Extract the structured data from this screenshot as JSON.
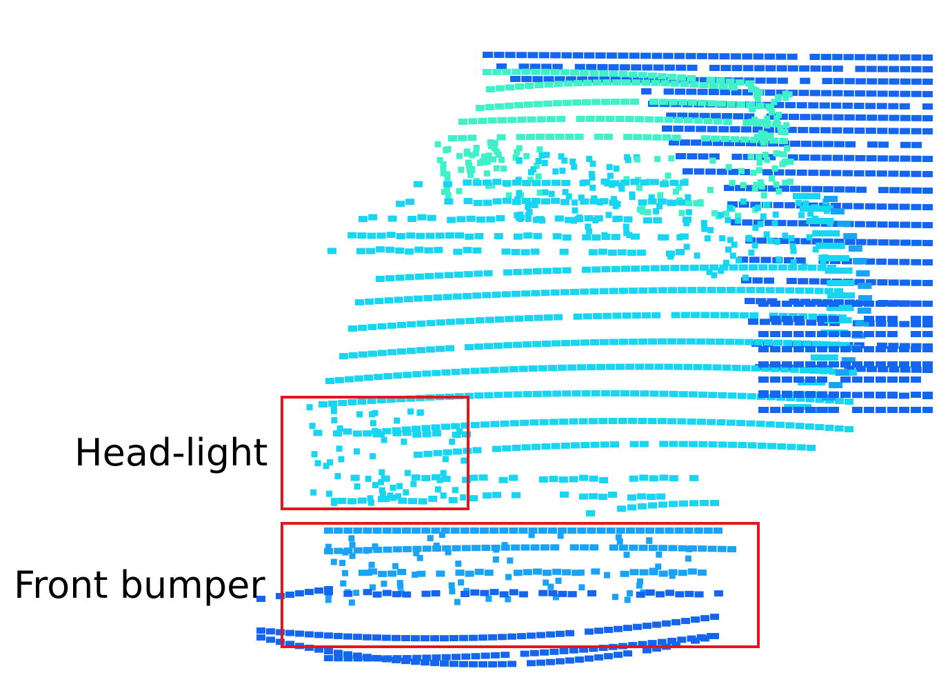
{
  "annotations": [
    {
      "id": "headlight",
      "label": "Head-light",
      "box_color": "#e8141b"
    },
    {
      "id": "bumper",
      "label": "Front bumper",
      "box_color": "#e8141b"
    }
  ],
  "colors": {
    "deep_blue": "#1466f0",
    "mid_blue": "#1aa2f5",
    "cyan": "#18d6f2",
    "aqua": "#3ff0c8",
    "box": "#e8141b"
  }
}
